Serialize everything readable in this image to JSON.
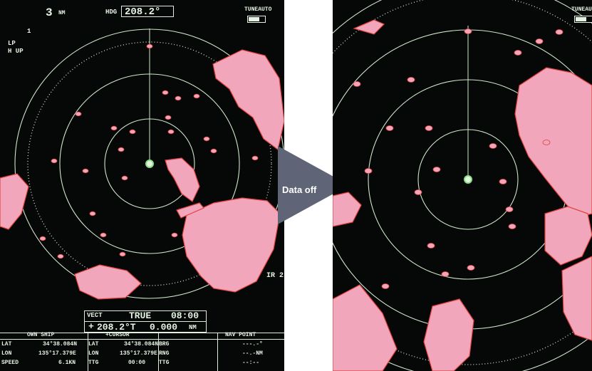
{
  "left_display": {
    "range": "3",
    "range_unit": "NM",
    "range_rings_label": "1",
    "mode_pulse": "LP",
    "mode_orientation": "H UP",
    "heading_label": "HDG",
    "heading_value": "208.2°",
    "tune_label": "TUNEAUTO",
    "ir_label": "IR 2",
    "vector": {
      "label": "VECT",
      "mode": "TRUE",
      "time": "08:00",
      "cursor_symbol": "+",
      "cursor_bearing": "208.2°T",
      "cursor_distance": "0.000",
      "cursor_distance_unit": "NM"
    },
    "data_table": {
      "own_ship_header": "OWN SHIP",
      "cursor_header": "+CURSOR",
      "nav_point_header": "NAV POINT",
      "rows": [
        {
          "label": "LAT",
          "own": "34°38.084N",
          "mid": "LAT",
          "cursor": "34°38.084N",
          "right": "BRG",
          "nav": "---.-°"
        },
        {
          "label": "LON",
          "own": "135°17.379E",
          "mid": "LON",
          "cursor": "135°17.379E",
          "right": "RNG",
          "nav": "--.-NM"
        },
        {
          "label": "SPEED",
          "own": "6.1KN",
          "mid": "TTG",
          "cursor": "00:00",
          "right": "TTG",
          "nav": "--:--"
        }
      ]
    }
  },
  "right_display": {
    "tune_label": "TUNEAUTO"
  },
  "transition": {
    "label": "Data off",
    "arrow_color": "#5f6476"
  },
  "colors": {
    "screen_background": "#050806",
    "rings": "#cfe6cc",
    "echo_fill": "#f2a6bc",
    "echo_edge": "#e0433f",
    "overlay_text": "#e6f2e4"
  }
}
